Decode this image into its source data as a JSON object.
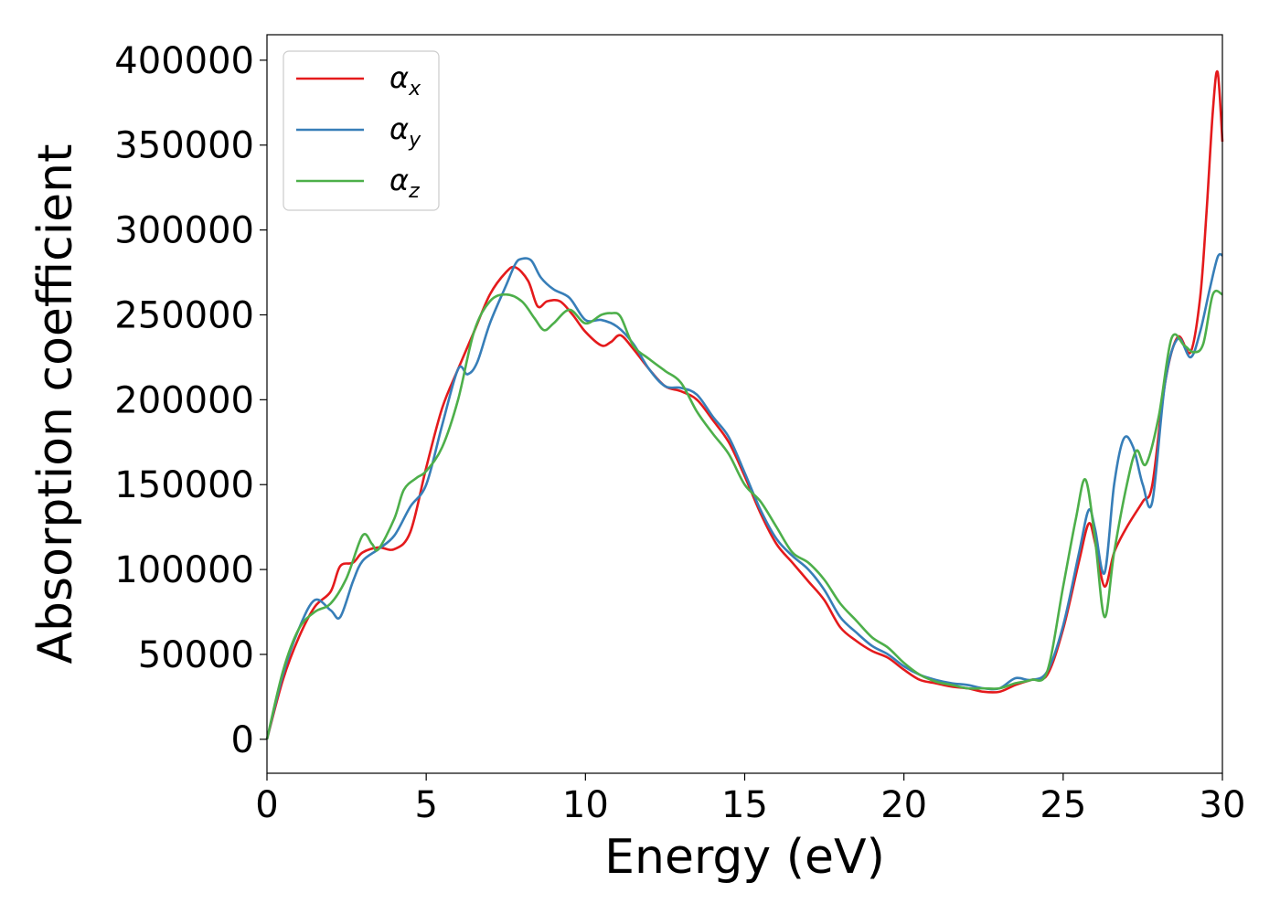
{
  "chart_data": {
    "type": "line",
    "title": "",
    "xlabel": "Energy (eV)",
    "ylabel": "Absorption coefficient",
    "xlim": [
      0,
      30
    ],
    "ylim": [
      -20000,
      415000
    ],
    "xticks": [
      "0",
      "5",
      "10",
      "15",
      "20",
      "25",
      "30"
    ],
    "xtick_values": [
      0,
      5,
      10,
      15,
      20,
      25,
      30
    ],
    "yticks": [
      "0",
      "50000",
      "100000",
      "150000",
      "200000",
      "250000",
      "300000",
      "350000",
      "400000"
    ],
    "ytick_values": [
      0,
      50000,
      100000,
      150000,
      200000,
      250000,
      300000,
      350000,
      400000
    ],
    "grid": false,
    "legend_position": "top-left",
    "series": [
      {
        "name": "α",
        "subscript": "x",
        "color": "#e41a1c",
        "x": [
          0,
          0.5,
          1.0,
          1.5,
          2.0,
          2.3,
          2.7,
          3.0,
          3.5,
          4.0,
          4.5,
          5.0,
          5.5,
          6.0,
          6.5,
          7.0,
          7.5,
          7.8,
          8.2,
          8.5,
          8.8,
          9.2,
          9.6,
          10.0,
          10.5,
          10.8,
          11.1,
          11.5,
          12.0,
          12.5,
          13.0,
          13.5,
          14.0,
          14.5,
          15.0,
          15.5,
          16.0,
          16.5,
          17.0,
          17.5,
          18.0,
          18.5,
          19.0,
          19.5,
          20.0,
          20.5,
          21.0,
          21.5,
          22.0,
          22.5,
          23.0,
          23.5,
          24.0,
          24.5,
          25.0,
          25.5,
          25.8,
          26.0,
          26.3,
          26.6,
          27.0,
          27.5,
          27.8,
          28.2,
          28.6,
          29.0,
          29.3,
          29.5,
          29.7,
          29.85,
          30.0
        ],
        "y": [
          0,
          35000,
          60000,
          78000,
          87000,
          102000,
          104000,
          110000,
          113000,
          112000,
          122000,
          160000,
          195000,
          218000,
          240000,
          262000,
          275000,
          278000,
          270000,
          255000,
          258000,
          258000,
          250000,
          240000,
          232000,
          234000,
          238000,
          230000,
          218000,
          208000,
          205000,
          200000,
          188000,
          175000,
          155000,
          133000,
          115000,
          104000,
          93000,
          82000,
          66000,
          58000,
          52000,
          48000,
          41000,
          35000,
          33000,
          31000,
          30000,
          28000,
          28000,
          32000,
          35000,
          38000,
          65000,
          105000,
          127000,
          116000,
          90000,
          110000,
          125000,
          140000,
          150000,
          210000,
          237000,
          228000,
          260000,
          310000,
          370000,
          393000,
          352000
        ]
      },
      {
        "name": "α",
        "subscript": "y",
        "color": "#377eb8",
        "x": [
          0,
          0.5,
          1.0,
          1.5,
          2.0,
          2.3,
          2.7,
          3.0,
          3.5,
          4.0,
          4.5,
          5.0,
          5.5,
          6.0,
          6.3,
          6.6,
          7.0,
          7.5,
          7.8,
          8.0,
          8.3,
          8.6,
          9.0,
          9.5,
          10.0,
          10.5,
          11.0,
          11.5,
          12.0,
          12.5,
          13.0,
          13.5,
          14.0,
          14.5,
          15.0,
          15.5,
          16.0,
          16.5,
          17.0,
          17.5,
          18.0,
          18.5,
          19.0,
          19.5,
          20.0,
          20.5,
          21.0,
          21.5,
          22.0,
          22.5,
          23.0,
          23.5,
          24.0,
          24.5,
          25.0,
          25.5,
          25.8,
          26.0,
          26.3,
          26.6,
          26.9,
          27.2,
          27.5,
          27.8,
          28.2,
          28.6,
          29.0,
          29.3,
          29.6,
          29.85,
          30.0
        ],
        "y": [
          0,
          38000,
          65000,
          82000,
          76000,
          72000,
          93000,
          105000,
          112000,
          120000,
          137000,
          150000,
          185000,
          218000,
          215000,
          222000,
          245000,
          267000,
          280000,
          283000,
          282000,
          272000,
          265000,
          260000,
          247000,
          247000,
          243000,
          233000,
          218000,
          208000,
          207000,
          203000,
          190000,
          178000,
          157000,
          135000,
          118000,
          108000,
          100000,
          88000,
          72000,
          63000,
          55000,
          50000,
          43000,
          38000,
          35000,
          33000,
          32000,
          30000,
          30000,
          36000,
          35000,
          40000,
          67000,
          110000,
          135000,
          124000,
          98000,
          150000,
          177000,
          172000,
          150000,
          140000,
          210000,
          236000,
          225000,
          240000,
          265000,
          284000,
          285000
        ]
      },
      {
        "name": "α",
        "subscript": "z",
        "color": "#4daf4a",
        "x": [
          0,
          0.5,
          1.0,
          1.5,
          2.0,
          2.5,
          3.0,
          3.3,
          3.5,
          4.0,
          4.3,
          4.7,
          5.0,
          5.5,
          6.0,
          6.5,
          7.0,
          7.5,
          8.0,
          8.4,
          8.7,
          9.0,
          9.5,
          10.0,
          10.5,
          10.8,
          11.1,
          11.5,
          12.0,
          12.5,
          13.0,
          13.5,
          14.0,
          14.5,
          15.0,
          15.5,
          16.0,
          16.5,
          17.0,
          17.5,
          18.0,
          18.5,
          19.0,
          19.5,
          20.0,
          20.5,
          21.0,
          21.5,
          22.0,
          22.5,
          23.0,
          23.5,
          24.0,
          24.5,
          25.0,
          25.4,
          25.7,
          26.0,
          26.3,
          26.6,
          27.0,
          27.3,
          27.6,
          28.0,
          28.4,
          28.8,
          29.1,
          29.4,
          29.7,
          30.0
        ],
        "y": [
          0,
          40000,
          65000,
          75000,
          80000,
          95000,
          120000,
          115000,
          112000,
          130000,
          147000,
          154000,
          158000,
          172000,
          200000,
          240000,
          258000,
          262000,
          258000,
          248000,
          241000,
          245000,
          253000,
          245000,
          250000,
          251000,
          249000,
          232000,
          224000,
          217000,
          210000,
          193000,
          180000,
          168000,
          150000,
          140000,
          125000,
          110000,
          104000,
          94000,
          80000,
          70000,
          60000,
          54000,
          45000,
          38000,
          34000,
          32000,
          30000,
          30000,
          30000,
          33000,
          35000,
          40000,
          90000,
          130000,
          153000,
          118000,
          72000,
          110000,
          150000,
          170000,
          162000,
          190000,
          236000,
          232000,
          228000,
          233000,
          262000,
          262000
        ]
      }
    ]
  }
}
